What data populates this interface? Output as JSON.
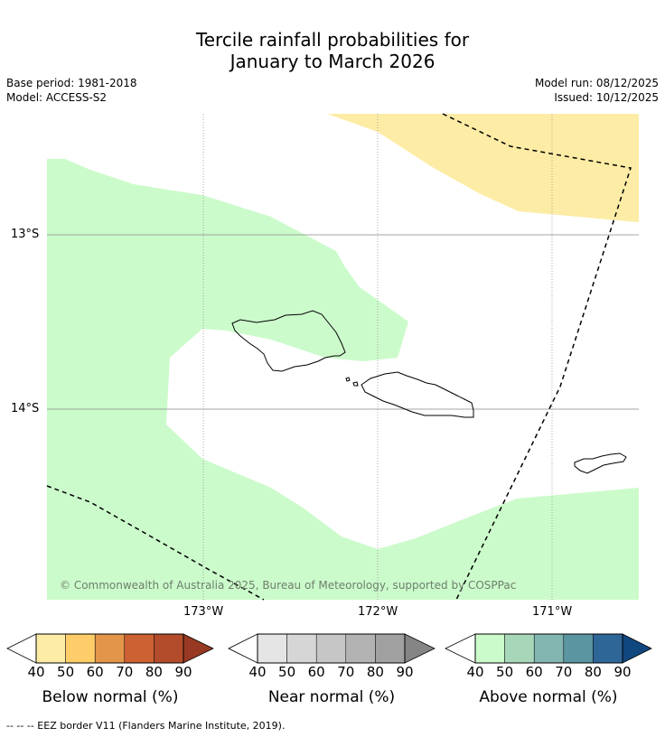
{
  "header": {
    "title_line1": "Tercile rainfall probabilities for",
    "title_line2": "January to March 2026",
    "base_period": "Base period: 1981-2018",
    "model": "Model: ACCESS-S2",
    "model_run": "Model run: 08/12/2025",
    "issued": "Issued: 10/12/2025"
  },
  "map": {
    "lat_labels": [
      "13°S",
      "14°S"
    ],
    "lon_labels": [
      "173°W",
      "172°W",
      "171°W"
    ],
    "watermark": "© Commonwealth of Australia 2025, Bureau of Meteorology, supported by COSPPac",
    "colors": {
      "above_40": "#ccfbcb",
      "below_40": "#fdeca5",
      "coast": "#000000",
      "grid": "#888888"
    }
  },
  "legend": {
    "ticks": [
      "40",
      "50",
      "60",
      "70",
      "80",
      "90"
    ],
    "colorbars": [
      {
        "label": "Below normal (%)",
        "colors": [
          "#fdeca5",
          "#fdcd69",
          "#e3954a",
          "#cc6134",
          "#b24c2b",
          "#983a23"
        ]
      },
      {
        "label": "Near normal (%)",
        "colors": [
          "#e5e5e5",
          "#d6d6d6",
          "#c6c6c6",
          "#b3b3b3",
          "#a0a0a0",
          "#858585"
        ]
      },
      {
        "label": "Above normal (%)",
        "colors": [
          "#ccfbcb",
          "#a7d6b9",
          "#82b5b0",
          "#5a95a1",
          "#2f6698",
          "#10477e"
        ]
      }
    ]
  },
  "footer": {
    "eez_note": "--  --  -- EEZ border V11 (Flanders Marine Institute, 2019)."
  }
}
